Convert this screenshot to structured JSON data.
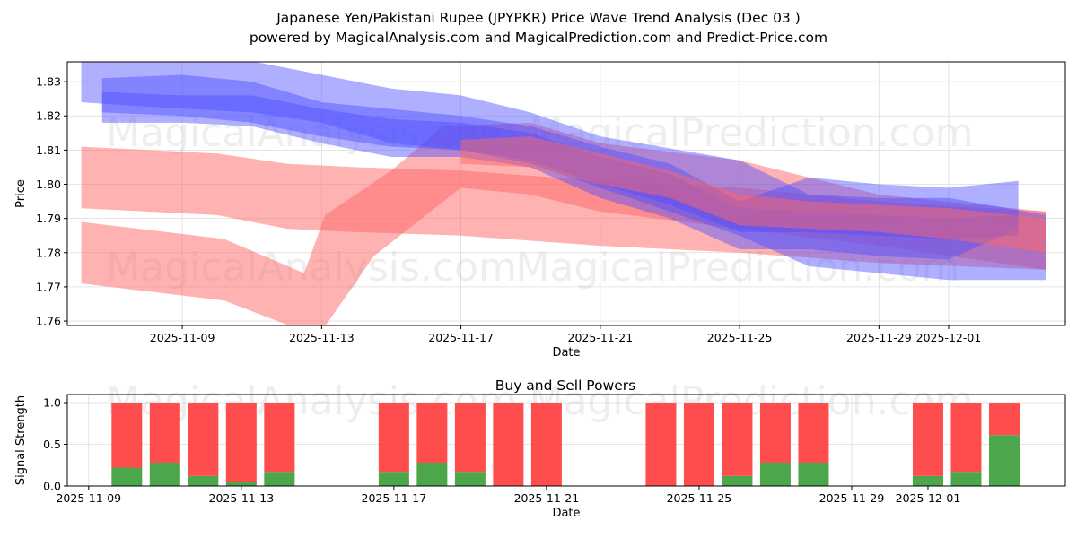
{
  "title_line1": "Japanese Yen/Pakistani Rupee (JPYPKR) Price Wave Trend Analysis (Dec 03 )",
  "title_line2": "powered by MagicalAnalysis.com and MagicalPrediction.com and Predict-Price.com",
  "watermarks": [
    "MagicalAnalysis.com",
    "MagicalPrediction.com"
  ],
  "colors": {
    "buy": "#4ca64c",
    "sell": "#ff4c4c",
    "blue_band": "#4d4dff",
    "red_band": "#ff6666"
  },
  "chart_data": [
    {
      "type": "area",
      "title": "",
      "xlabel": "Date",
      "ylabel": "Price",
      "x_unit": "days since 2025-11-09",
      "xlim": [
        -3.3,
        25.35
      ],
      "ylim": [
        1.7587,
        1.8358
      ],
      "xticks": [
        {
          "day": 0,
          "label": "2025-11-09"
        },
        {
          "day": 4,
          "label": "2025-11-13"
        },
        {
          "day": 8,
          "label": "2025-11-17"
        },
        {
          "day": 12,
          "label": "2025-11-21"
        },
        {
          "day": 16,
          "label": "2025-11-25"
        },
        {
          "day": 20,
          "label": "2025-11-29"
        },
        {
          "day": 22,
          "label": "2025-12-01"
        }
      ],
      "yticks": [
        1.76,
        1.77,
        1.78,
        1.79,
        1.8,
        1.81,
        1.82,
        1.83
      ],
      "grid": true,
      "bands": [
        {
          "name": "red-band-upper",
          "color": "red",
          "x": [
            -2.9,
            1,
            3,
            5,
            8,
            12,
            16,
            20,
            24.8
          ],
          "lo": [
            1.793,
            1.791,
            1.787,
            1.786,
            1.785,
            1.782,
            1.78,
            1.777,
            1.775
          ],
          "hi": [
            1.811,
            1.809,
            1.806,
            1.805,
            1.804,
            1.801,
            1.799,
            1.795,
            1.792
          ]
        },
        {
          "name": "red-band-rebound",
          "color": "red",
          "hi_x": [
            -2.9,
            1.2,
            3.5,
            4.1,
            6,
            7.5,
            10,
            12,
            16,
            20,
            24.8
          ],
          "hi": [
            1.789,
            1.784,
            1.774,
            1.791,
            1.804,
            1.817,
            1.818,
            1.812,
            1.807,
            1.797,
            1.792
          ],
          "lo_x": [
            -2.9,
            1.2,
            3.5,
            4,
            5.5,
            8,
            10,
            12,
            16,
            20,
            24.8
          ],
          "lo": [
            1.771,
            1.766,
            1.757,
            1.757,
            1.779,
            1.799,
            1.797,
            1.792,
            1.787,
            1.782,
            1.775
          ]
        },
        {
          "name": "blue-band-wide",
          "color": "blue",
          "x": [
            -2.9,
            -1.5,
            2,
            4,
            6,
            8,
            10,
            12,
            16,
            18,
            20,
            22,
            24.8
          ],
          "lo": [
            1.824,
            1.823,
            1.821,
            1.818,
            1.812,
            1.81,
            1.806,
            1.799,
            1.785,
            1.776,
            1.774,
            1.772,
            1.772
          ],
          "hi": [
            1.836,
            1.836,
            1.836,
            1.832,
            1.828,
            1.826,
            1.821,
            1.814,
            1.807,
            1.797,
            1.796,
            1.796,
            1.791
          ]
        },
        {
          "name": "blue-band-light",
          "color": "blue",
          "x": [
            -2.3,
            0,
            2,
            4,
            6,
            8,
            10,
            12,
            14,
            16,
            18,
            20,
            22,
            24
          ],
          "lo": [
            1.818,
            1.818,
            1.817,
            1.812,
            1.808,
            1.808,
            1.805,
            1.796,
            1.79,
            1.781,
            1.781,
            1.779,
            1.778,
            1.787
          ],
          "hi": [
            1.831,
            1.832,
            1.83,
            1.824,
            1.822,
            1.82,
            1.817,
            1.811,
            1.806,
            1.795,
            1.802,
            1.8,
            1.799,
            1.801
          ]
        },
        {
          "name": "blue-band-core",
          "color": "blue",
          "x": [
            -2.3,
            0,
            2,
            4,
            6,
            8,
            10,
            12,
            14,
            16,
            18,
            20,
            22,
            24
          ],
          "lo": [
            1.821,
            1.82,
            1.818,
            1.814,
            1.811,
            1.81,
            1.807,
            1.8,
            1.794,
            1.786,
            1.786,
            1.785,
            1.784,
            1.785
          ],
          "hi": [
            1.827,
            1.826,
            1.826,
            1.822,
            1.819,
            1.818,
            1.815,
            1.808,
            1.803,
            1.793,
            1.792,
            1.791,
            1.79,
            1.791
          ]
        },
        {
          "name": "red-band-mid",
          "color": "red",
          "x": [
            8,
            10,
            12,
            14,
            16,
            18,
            20,
            22,
            24.8
          ],
          "lo": [
            1.806,
            1.805,
            1.8,
            1.796,
            1.788,
            1.787,
            1.786,
            1.784,
            1.78
          ],
          "hi": [
            1.813,
            1.814,
            1.809,
            1.804,
            1.797,
            1.795,
            1.794,
            1.793,
            1.79
          ]
        }
      ]
    },
    {
      "type": "bar",
      "title": "Buy and Sell Powers",
      "xlabel": "Date",
      "ylabel": "Signal Strength",
      "x_unit": "days since 2025-11-09",
      "xlim": [
        -0.56,
        25.6
      ],
      "ylim": [
        0,
        1.097
      ],
      "yticks": [
        0.0,
        0.5,
        1.0
      ],
      "xticks": [
        {
          "day": 0,
          "label": "2025-11-09"
        },
        {
          "day": 4,
          "label": "2025-11-13"
        },
        {
          "day": 8,
          "label": "2025-11-17"
        },
        {
          "day": 12,
          "label": "2025-11-21"
        },
        {
          "day": 16,
          "label": "2025-11-25"
        },
        {
          "day": 20,
          "label": "2025-11-29"
        },
        {
          "day": 22,
          "label": "2025-12-01"
        }
      ],
      "categories": [
        "2025-11-10",
        "2025-11-11",
        "2025-11-12",
        "2025-11-13",
        "2025-11-14",
        "2025-11-17",
        "2025-11-18",
        "2025-11-19",
        "2025-11-20",
        "2025-11-21",
        "2025-11-24",
        "2025-11-25",
        "2025-11-26",
        "2025-11-27",
        "2025-11-28",
        "2025-12-01",
        "2025-12-02",
        "2025-12-03"
      ],
      "days": [
        1,
        2,
        3,
        4,
        5,
        8,
        9,
        10,
        11,
        12,
        15,
        16,
        17,
        18,
        19,
        22,
        23,
        24
      ],
      "series": [
        {
          "name": "Buy",
          "values": [
            0.22,
            0.28,
            0.12,
            0.05,
            0.17,
            0.17,
            0.28,
            0.17,
            0.0,
            0.0,
            0.0,
            0.0,
            0.12,
            0.28,
            0.28,
            0.12,
            0.17,
            0.61
          ]
        },
        {
          "name": "Sell",
          "values": [
            0.78,
            0.72,
            0.88,
            0.95,
            0.83,
            0.83,
            0.72,
            0.83,
            1.0,
            1.0,
            1.0,
            1.0,
            0.88,
            0.72,
            0.72,
            0.88,
            0.83,
            0.39
          ]
        }
      ]
    }
  ]
}
